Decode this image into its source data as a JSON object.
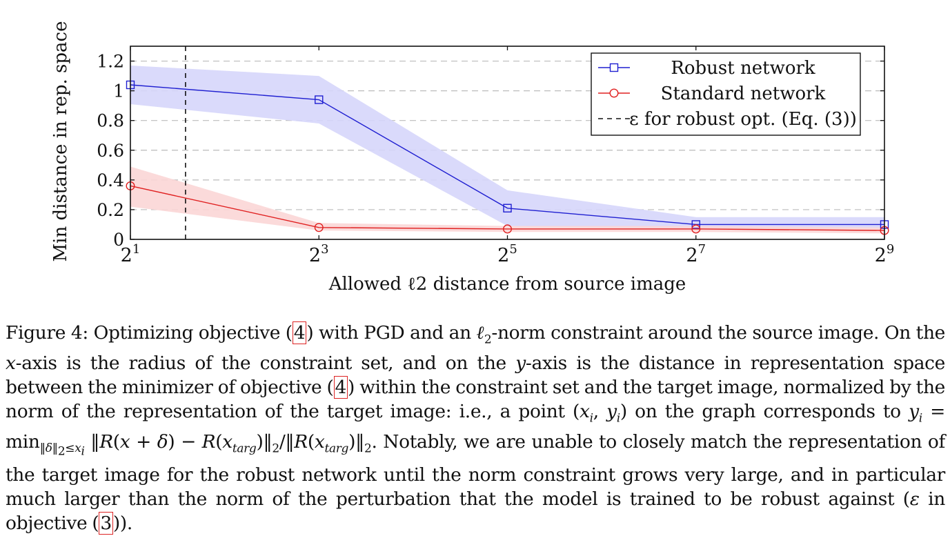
{
  "chart_data": {
    "type": "line",
    "xlabel": "Allowed ℓ2 distance from source image",
    "ylabel": "Min distance in rep. space",
    "x_scale": "log2",
    "xlim": [
      2,
      512
    ],
    "ylim": [
      0,
      1.3
    ],
    "x_ticks": [
      2,
      8,
      32,
      128,
      512
    ],
    "x_tick_labels": [
      {
        "base": "2",
        "exp": "1"
      },
      {
        "base": "2",
        "exp": "3"
      },
      {
        "base": "2",
        "exp": "5"
      },
      {
        "base": "2",
        "exp": "7"
      },
      {
        "base": "2",
        "exp": "9"
      }
    ],
    "y_ticks": [
      0,
      0.2,
      0.4,
      0.6,
      0.8,
      1,
      1.2
    ],
    "y_tick_labels": [
      "0",
      "0.2",
      "0.4",
      "0.6",
      "0.8",
      "1",
      "1.2"
    ],
    "grid": "horizontal dashed",
    "legend_position": "top-right",
    "series": [
      {
        "name": "Robust network",
        "color": "#1f1fd1",
        "band_color": "#d6d6fb",
        "marker": "square",
        "x": [
          2,
          8,
          32,
          128,
          512
        ],
        "y": [
          1.04,
          0.94,
          0.21,
          0.1,
          0.1
        ],
        "y_lower": [
          0.91,
          0.78,
          0.09,
          0.07,
          0.07
        ],
        "y_upper": [
          1.17,
          1.1,
          0.33,
          0.15,
          0.15
        ]
      },
      {
        "name": "Standard network",
        "color": "#e02020",
        "band_color": "#fbd6d6",
        "marker": "circle",
        "x": [
          2,
          8,
          32,
          128,
          512
        ],
        "y": [
          0.36,
          0.08,
          0.07,
          0.07,
          0.06
        ],
        "y_lower": [
          0.22,
          0.06,
          0.05,
          0.05,
          0.04
        ],
        "y_upper": [
          0.49,
          0.11,
          0.09,
          0.09,
          0.08
        ]
      }
    ],
    "reference_line": {
      "label": "ε for robust opt. (Eq. (3))",
      "x": 3.0,
      "style": "dashed",
      "color": "#111111"
    }
  },
  "caption": {
    "text": "Figure 4: Optimizing objective (4) with PGD and an ℓ2-norm constraint around the source image. On the x-axis is the radius of the constraint set, and on the y-axis is the distance in representation space between the minimizer of objective (4) within the constraint set and the target image, normalized by the norm of the representation of the target image: i.e., a point (xi, yi) on the graph corresponds to yi = min‖δ‖2≤xi ‖R(x + δ) − R(xtarg)‖2/‖R(xtarg)‖2. Notably, we are unable to closely match the representation of the target image for the robust network until the norm constraint grows very large, and in particular much larger than the norm of the perturbation that the model is trained to be robust against (ε in objective (3))."
  }
}
